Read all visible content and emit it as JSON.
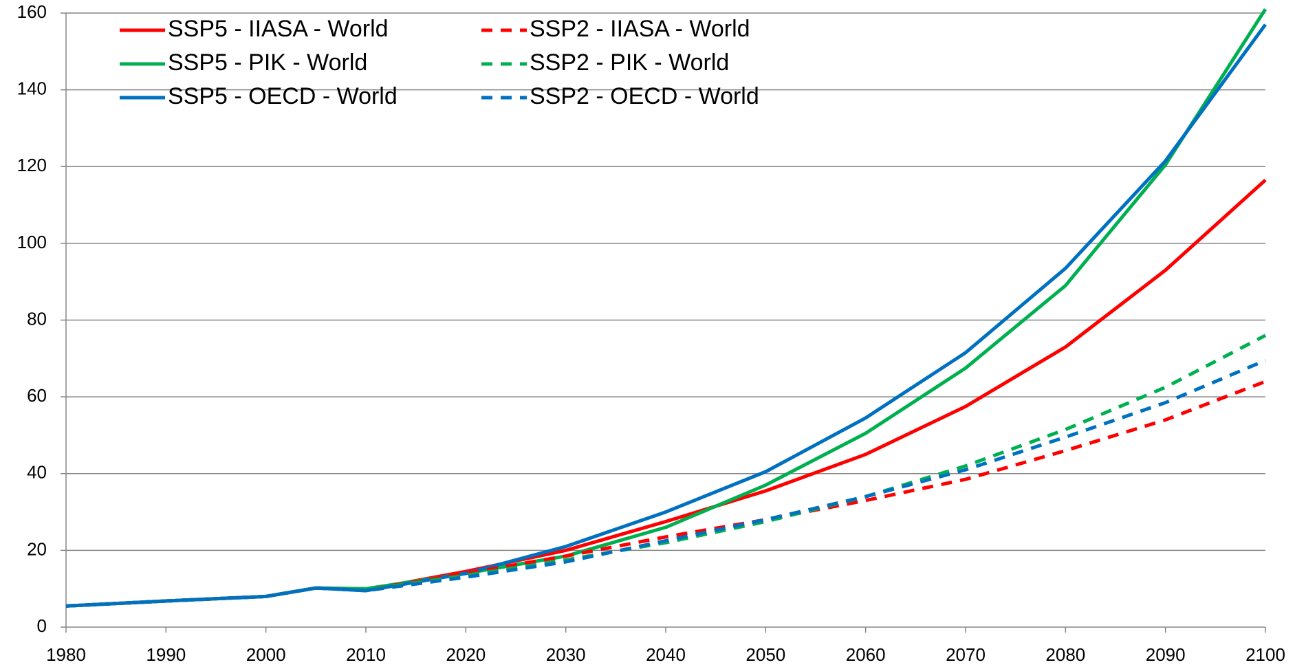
{
  "chart_data": {
    "type": "line",
    "x": [
      1980,
      1990,
      2000,
      2005,
      2010,
      2020,
      2030,
      2040,
      2050,
      2060,
      2070,
      2080,
      2090,
      2100
    ],
    "series": [
      {
        "name": "SSP5 - IIASA - World",
        "color": "#ff0000",
        "dashed": false,
        "values": [
          5.5,
          6.8,
          8,
          10.2,
          9.7,
          14.5,
          20,
          27.5,
          35.5,
          45,
          57.5,
          73,
          93,
          116.5
        ]
      },
      {
        "name": "SSP5 - PIK - World",
        "color": "#00b050",
        "dashed": false,
        "values": [
          5.5,
          6.8,
          8,
          10.2,
          10,
          14,
          18.5,
          26,
          37,
          50.5,
          67.5,
          89,
          120.5,
          161
        ]
      },
      {
        "name": "SSP5 - OECD - World",
        "color": "#0070c0",
        "dashed": false,
        "values": [
          5.5,
          6.8,
          8,
          10.2,
          9.5,
          14,
          21,
          30,
          40.5,
          54.5,
          71.5,
          93.5,
          121.5,
          157
        ]
      },
      {
        "name": "SSP2 - IIASA - World",
        "color": "#ff0000",
        "dashed": true,
        "values": [
          5.5,
          6.8,
          8,
          10.2,
          9.7,
          14,
          18.5,
          23.5,
          28,
          33,
          38.5,
          46,
          54,
          64
        ]
      },
      {
        "name": "SSP2 - PIK - World",
        "color": "#00b050",
        "dashed": true,
        "values": [
          5.5,
          6.8,
          8,
          10.2,
          9.7,
          13.5,
          17.5,
          22,
          27.5,
          34,
          42,
          51.5,
          62.5,
          76
        ]
      },
      {
        "name": "SSP2 - OECD - World",
        "color": "#0070c0",
        "dashed": true,
        "values": [
          5.5,
          6.8,
          8,
          10.2,
          9.5,
          13,
          17,
          22.5,
          28,
          34,
          41,
          49.5,
          58.5,
          69.5
        ]
      }
    ],
    "xlim": [
      1980,
      2100
    ],
    "xticks": [
      1980,
      1990,
      2000,
      2010,
      2020,
      2030,
      2040,
      2050,
      2060,
      2070,
      2080,
      2090,
      2100
    ],
    "ylim": [
      0,
      160
    ],
    "yticks": [
      0,
      20,
      40,
      60,
      80,
      100,
      120,
      140,
      160
    ],
    "grid": true,
    "legend": "top-left"
  }
}
